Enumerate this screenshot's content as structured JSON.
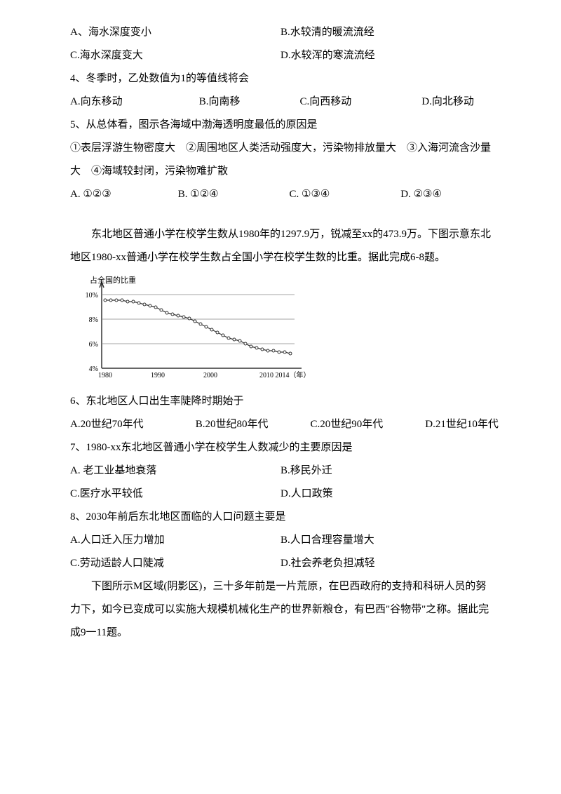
{
  "q3": {
    "optA": "A、海水深度变小",
    "optB": "B.水较清的暖流流经",
    "optC": "C.海水深度变大",
    "optD": "D.水较浑的寒流流经"
  },
  "q4": {
    "stem": "4、冬季时，乙处数值为1的等值线将会",
    "optA": "A.向东移动",
    "optB": "B.向南移",
    "optC": "C.向西移动",
    "optD": "D.向北移动",
    "wA": "180px",
    "wB": "140px",
    "wC": "170px",
    "wD": "120px"
  },
  "q5": {
    "stem": "5、从总体看，图示各海域中渤海透明度最低的原因是",
    "items": "①表层浮游生物密度大　②周围地区人类活动强度大，污染物排放量大　③入海河流含沙量大　④海域较封闭，污染物难扩散",
    "optA": "A. ①②③",
    "optB": "B. ①②④",
    "optC": "C. ①③④",
    "optD": "D. ②③④",
    "wA": "150px",
    "wB": "155px",
    "wC": "155px",
    "wD": "120px"
  },
  "passage2": {
    "text": "东北地区普通小学在校学生数从1980年的1297.9万，锐减至xx的473.9万。下图示意东北地区1980-xx普通小学在校学生数占全国小学在校学生数的比重。据此完成6-8题。"
  },
  "chart": {
    "y_label": "占全国的比重",
    "y_ticks": [
      "10%",
      "8%",
      "6%",
      "4%"
    ],
    "x_ticks": [
      "1980",
      "1990",
      "2000",
      "2010 2014（年）"
    ],
    "x_positions": [
      50,
      125,
      200,
      275
    ],
    "y_tick_positions": [
      30,
      65,
      100,
      135
    ],
    "axis_color": "#333333",
    "grid_color": "#888888",
    "line_color": "#333333",
    "bg_color": "#ffffff",
    "data_points": [
      {
        "x": 50,
        "y": 38
      },
      {
        "x": 58,
        "y": 38
      },
      {
        "x": 66,
        "y": 38
      },
      {
        "x": 74,
        "y": 38
      },
      {
        "x": 82,
        "y": 40
      },
      {
        "x": 90,
        "y": 40
      },
      {
        "x": 98,
        "y": 42
      },
      {
        "x": 106,
        "y": 44
      },
      {
        "x": 114,
        "y": 46
      },
      {
        "x": 122,
        "y": 48
      },
      {
        "x": 130,
        "y": 52
      },
      {
        "x": 138,
        "y": 56
      },
      {
        "x": 146,
        "y": 58
      },
      {
        "x": 154,
        "y": 60
      },
      {
        "x": 162,
        "y": 62
      },
      {
        "x": 170,
        "y": 64
      },
      {
        "x": 178,
        "y": 68
      },
      {
        "x": 186,
        "y": 72
      },
      {
        "x": 194,
        "y": 76
      },
      {
        "x": 202,
        "y": 80
      },
      {
        "x": 210,
        "y": 84
      },
      {
        "x": 218,
        "y": 88
      },
      {
        "x": 226,
        "y": 92
      },
      {
        "x": 234,
        "y": 94
      },
      {
        "x": 242,
        "y": 96
      },
      {
        "x": 250,
        "y": 100
      },
      {
        "x": 258,
        "y": 104
      },
      {
        "x": 266,
        "y": 106
      },
      {
        "x": 274,
        "y": 108
      },
      {
        "x": 282,
        "y": 110
      },
      {
        "x": 290,
        "y": 110
      },
      {
        "x": 298,
        "y": 112
      },
      {
        "x": 306,
        "y": 112
      },
      {
        "x": 314,
        "y": 114
      }
    ]
  },
  "q6": {
    "stem": "6、东北地区人口出生率陡降时期始于",
    "optA": "A.20世纪70年代",
    "optB": "B.20世纪80年代",
    "optC": "C.20世纪90年代",
    "optD": "D.21世纪10年代",
    "wA": "175px",
    "wB": "160px",
    "wC": "160px",
    "wD": "130px"
  },
  "q7": {
    "stem": "7、1980-xx东北地区普通小学在校学生人数减少的主要原因是",
    "optA": "A. 老工业基地衰落",
    "optB": "B.移民外迁",
    "optC": "C.医疗水平较低",
    "optD": "D.人口政策"
  },
  "q8": {
    "stem": "8、2030年前后东北地区面临的人口问题主要是",
    "optA": "A.人口迁入压力增加",
    "optB": "B.人口合理容量增大",
    "optC": "C.劳动适龄人口陡减",
    "optD": "D.社会养老负担减轻"
  },
  "passage3": {
    "text": "下图所示M区域(阴影区)，三十多年前是一片荒原，在巴西政府的支持和科研人员的努力下，如今已变成可以实施大规模机械化生产的世界新粮仓，有巴西\"谷物带\"之称。据此完成9一11题。"
  }
}
